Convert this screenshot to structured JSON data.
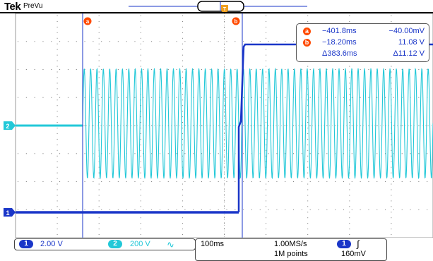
{
  "header": {
    "brand": "Tek",
    "status": "PreVu"
  },
  "colors": {
    "ch1": "#1a36c8",
    "ch2": "#22c8d8",
    "cursor_badge": "#ff4a00",
    "trigger_marker": "#f0a020"
  },
  "cursors": {
    "a_label": "a",
    "b_label": "b"
  },
  "channel_markers": {
    "ch1": "1",
    "ch2": "2"
  },
  "readout": {
    "a": {
      "label": "a",
      "time": "−401.8ms",
      "value": "−40.00mV"
    },
    "b": {
      "label": "b",
      "time": "−18.20ms",
      "value": "11.08 V"
    },
    "delta": {
      "time": "Δ383.6ms",
      "value": "Δ11.12 V"
    }
  },
  "channel_bar": {
    "ch1": {
      "num": "1",
      "scale": "2.00 V"
    },
    "ch2": {
      "num": "2",
      "scale": "200 V",
      "coupling_icon": "ac-wave-icon",
      "coupling_glyph": "∿"
    }
  },
  "timebase": {
    "horizontal": "100ms",
    "sample_rate": "1.00MS/s",
    "record_length": "1M points",
    "trigger_source": "1",
    "trigger_slope_icon": "rising-edge-icon",
    "trigger_slope_glyph": "∫",
    "trigger_level": "160mV"
  },
  "waveform": {
    "ch2_cycles": 55
  }
}
